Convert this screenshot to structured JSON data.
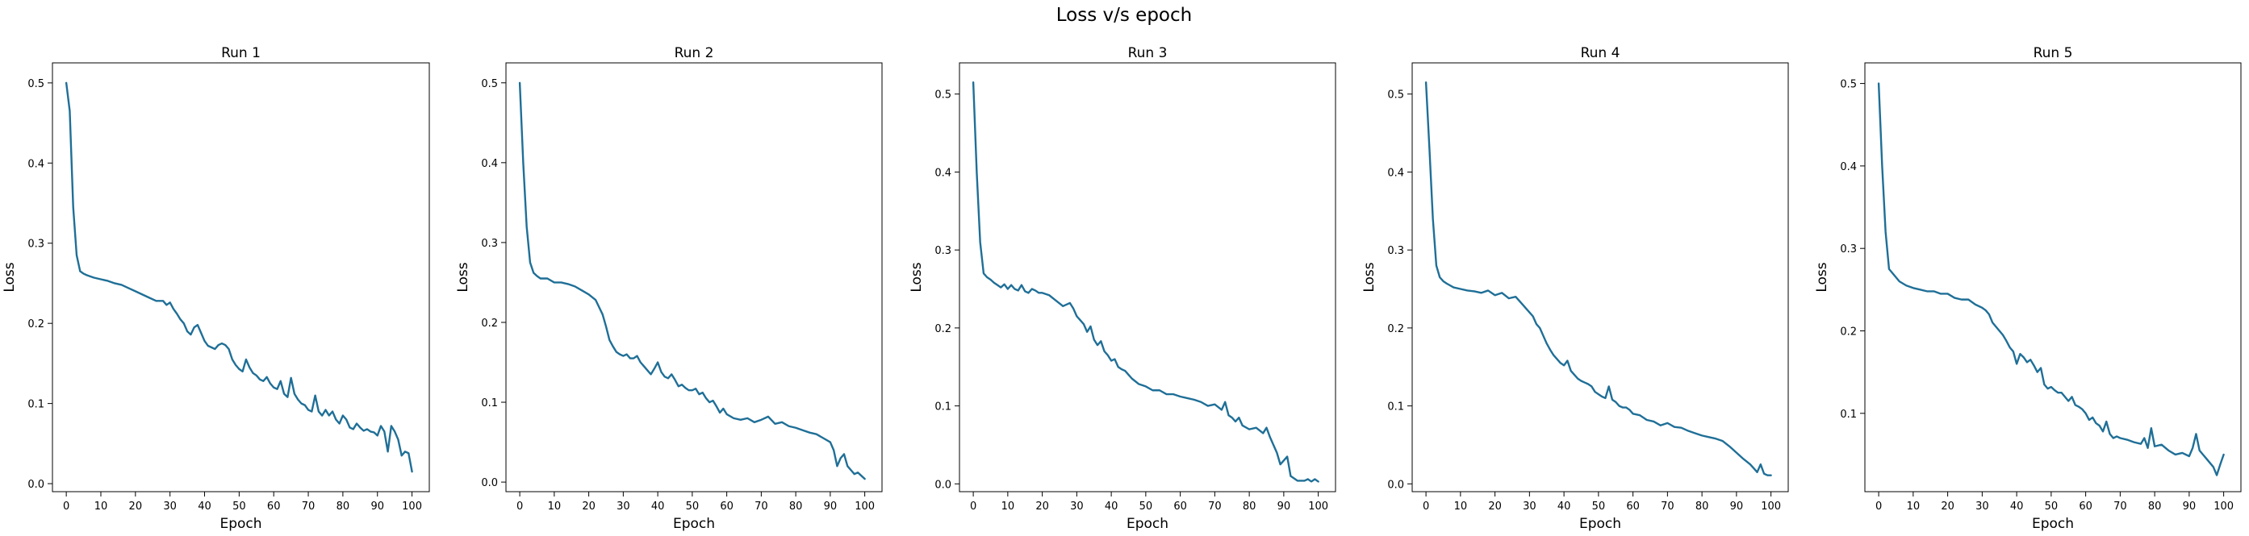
{
  "figure": {
    "title": "Loss v/s epoch",
    "background": "#ffffff",
    "line_color": "#1f6f97"
  },
  "chart_data": [
    {
      "type": "line",
      "title": "Run 1",
      "xlabel": "Epoch",
      "ylabel": "Loss",
      "xlim": [
        -4,
        105
      ],
      "ylim": [
        -0.01,
        0.525
      ],
      "xticks": [
        0,
        10,
        20,
        30,
        40,
        50,
        60,
        70,
        80,
        90,
        100
      ],
      "yticks": [
        0.0,
        0.1,
        0.2,
        0.3,
        0.4,
        0.5
      ],
      "ytick_labels": [
        "0.0",
        "0.1",
        "0.2",
        "0.3",
        "0.4",
        "0.5"
      ],
      "grid": false,
      "series": [
        {
          "x": [
            0,
            1,
            2,
            3,
            4,
            5,
            6,
            8,
            10,
            12,
            14,
            16,
            18,
            20,
            22,
            24,
            26,
            28,
            29,
            30,
            31,
            32,
            33,
            34,
            35,
            36,
            37,
            38,
            39,
            40,
            41,
            42,
            43,
            44,
            45,
            46,
            47,
            48,
            49,
            50,
            51,
            52,
            53,
            54,
            55,
            56,
            57,
            58,
            59,
            60,
            61,
            62,
            63,
            64,
            65,
            66,
            67,
            68,
            69,
            70,
            71,
            72,
            73,
            74,
            75,
            76,
            77,
            78,
            79,
            80,
            81,
            82,
            83,
            84,
            85,
            86,
            87,
            88,
            89,
            90,
            91,
            92,
            93,
            94,
            95,
            96,
            97,
            98,
            99,
            100
          ],
          "y": [
            0.5,
            0.465,
            0.345,
            0.285,
            0.265,
            0.262,
            0.26,
            0.257,
            0.255,
            0.253,
            0.25,
            0.248,
            0.244,
            0.24,
            0.236,
            0.232,
            0.228,
            0.228,
            0.223,
            0.226,
            0.218,
            0.212,
            0.205,
            0.2,
            0.19,
            0.186,
            0.195,
            0.198,
            0.188,
            0.178,
            0.172,
            0.17,
            0.168,
            0.173,
            0.175,
            0.173,
            0.168,
            0.155,
            0.148,
            0.143,
            0.14,
            0.155,
            0.145,
            0.138,
            0.135,
            0.13,
            0.128,
            0.133,
            0.125,
            0.12,
            0.118,
            0.128,
            0.112,
            0.108,
            0.132,
            0.112,
            0.105,
            0.1,
            0.098,
            0.092,
            0.09,
            0.11,
            0.09,
            0.085,
            0.092,
            0.085,
            0.09,
            0.08,
            0.075,
            0.085,
            0.08,
            0.07,
            0.068,
            0.075,
            0.07,
            0.066,
            0.068,
            0.065,
            0.064,
            0.06,
            0.072,
            0.065,
            0.04,
            0.072,
            0.065,
            0.055,
            0.035,
            0.04,
            0.038,
            0.015
          ]
        }
      ]
    },
    {
      "type": "line",
      "title": "Run 2",
      "xlabel": "Epoch",
      "ylabel": "Loss",
      "xlim": [
        -4,
        105
      ],
      "ylim": [
        -0.012,
        0.525
      ],
      "xticks": [
        0,
        10,
        20,
        30,
        40,
        50,
        60,
        70,
        80,
        90,
        100
      ],
      "yticks": [
        0.0,
        0.1,
        0.2,
        0.3,
        0.4,
        0.5
      ],
      "ytick_labels": [
        "0.0",
        "0.1",
        "0.2",
        "0.3",
        "0.4",
        "0.5"
      ],
      "grid": false,
      "series": [
        {
          "x": [
            0,
            1,
            2,
            3,
            4,
            5,
            6,
            8,
            10,
            12,
            14,
            16,
            18,
            20,
            22,
            24,
            25,
            26,
            27,
            28,
            29,
            30,
            31,
            32,
            33,
            34,
            35,
            36,
            37,
            38,
            39,
            40,
            41,
            42,
            43,
            44,
            45,
            46,
            47,
            48,
            49,
            50,
            51,
            52,
            53,
            54,
            55,
            56,
            57,
            58,
            59,
            60,
            62,
            64,
            66,
            68,
            70,
            72,
            74,
            76,
            78,
            80,
            82,
            84,
            86,
            88,
            90,
            91,
            92,
            93,
            94,
            95,
            96,
            97,
            98,
            99,
            100
          ],
          "y": [
            0.5,
            0.4,
            0.32,
            0.275,
            0.262,
            0.258,
            0.255,
            0.255,
            0.25,
            0.25,
            0.248,
            0.245,
            0.24,
            0.235,
            0.228,
            0.21,
            0.195,
            0.178,
            0.17,
            0.163,
            0.16,
            0.158,
            0.16,
            0.155,
            0.155,
            0.158,
            0.15,
            0.145,
            0.14,
            0.135,
            0.142,
            0.15,
            0.138,
            0.132,
            0.13,
            0.135,
            0.128,
            0.12,
            0.122,
            0.118,
            0.115,
            0.115,
            0.117,
            0.11,
            0.112,
            0.105,
            0.1,
            0.102,
            0.095,
            0.087,
            0.092,
            0.085,
            0.08,
            0.078,
            0.08,
            0.075,
            0.078,
            0.082,
            0.073,
            0.075,
            0.07,
            0.068,
            0.065,
            0.062,
            0.06,
            0.055,
            0.05,
            0.04,
            0.02,
            0.03,
            0.035,
            0.02,
            0.015,
            0.01,
            0.012,
            0.008,
            0.004
          ]
        }
      ]
    },
    {
      "type": "line",
      "title": "Run 3",
      "xlabel": "Epoch",
      "ylabel": "Loss",
      "xlim": [
        -4,
        105
      ],
      "ylim": [
        -0.01,
        0.54
      ],
      "xticks": [
        0,
        10,
        20,
        30,
        40,
        50,
        60,
        70,
        80,
        90,
        100
      ],
      "yticks": [
        0.0,
        0.1,
        0.2,
        0.3,
        0.4,
        0.5
      ],
      "ytick_labels": [
        "0.0",
        "0.1",
        "0.2",
        "0.3",
        "0.4",
        "0.5"
      ],
      "grid": false,
      "series": [
        {
          "x": [
            0,
            1,
            2,
            3,
            4,
            5,
            6,
            7,
            8,
            9,
            10,
            11,
            12,
            13,
            14,
            15,
            16,
            17,
            18,
            19,
            20,
            22,
            24,
            26,
            28,
            29,
            30,
            31,
            32,
            33,
            34,
            35,
            36,
            37,
            38,
            39,
            40,
            41,
            42,
            43,
            44,
            45,
            46,
            48,
            50,
            52,
            54,
            56,
            58,
            60,
            62,
            64,
            66,
            68,
            70,
            72,
            73,
            74,
            75,
            76,
            77,
            78,
            80,
            82,
            84,
            85,
            86,
            87,
            88,
            89,
            90,
            91,
            92,
            94,
            96,
            97,
            98,
            99,
            100
          ],
          "y": [
            0.515,
            0.4,
            0.31,
            0.27,
            0.265,
            0.262,
            0.258,
            0.255,
            0.252,
            0.256,
            0.25,
            0.255,
            0.25,
            0.248,
            0.255,
            0.247,
            0.245,
            0.25,
            0.248,
            0.245,
            0.245,
            0.242,
            0.235,
            0.228,
            0.232,
            0.225,
            0.215,
            0.21,
            0.205,
            0.195,
            0.202,
            0.185,
            0.178,
            0.183,
            0.17,
            0.165,
            0.158,
            0.16,
            0.15,
            0.147,
            0.145,
            0.14,
            0.135,
            0.128,
            0.125,
            0.12,
            0.12,
            0.115,
            0.115,
            0.112,
            0.11,
            0.108,
            0.105,
            0.1,
            0.102,
            0.095,
            0.105,
            0.088,
            0.085,
            0.08,
            0.085,
            0.075,
            0.07,
            0.072,
            0.065,
            0.072,
            0.06,
            0.05,
            0.04,
            0.025,
            0.03,
            0.035,
            0.01,
            0.004,
            0.004,
            0.006,
            0.003,
            0.006,
            0.003
          ]
        }
      ]
    },
    {
      "type": "line",
      "title": "Run 4",
      "xlabel": "Epoch",
      "ylabel": "Loss",
      "xlim": [
        -4,
        105
      ],
      "ylim": [
        -0.01,
        0.54
      ],
      "xticks": [
        0,
        10,
        20,
        30,
        40,
        50,
        60,
        70,
        80,
        90,
        100
      ],
      "yticks": [
        0.0,
        0.1,
        0.2,
        0.3,
        0.4,
        0.5
      ],
      "ytick_labels": [
        "0.0",
        "0.1",
        "0.2",
        "0.3",
        "0.4",
        "0.5"
      ],
      "grid": false,
      "series": [
        {
          "x": [
            0,
            1,
            2,
            3,
            4,
            5,
            6,
            8,
            10,
            12,
            14,
            16,
            18,
            20,
            22,
            24,
            26,
            28,
            30,
            31,
            32,
            33,
            34,
            35,
            36,
            37,
            38,
            39,
            40,
            41,
            42,
            43,
            44,
            45,
            46,
            47,
            48,
            49,
            50,
            51,
            52,
            53,
            54,
            55,
            56,
            57,
            58,
            59,
            60,
            62,
            64,
            66,
            68,
            70,
            72,
            74,
            76,
            78,
            80,
            82,
            84,
            86,
            88,
            90,
            92,
            94,
            95,
            96,
            97,
            98,
            99,
            100
          ],
          "y": [
            0.515,
            0.43,
            0.34,
            0.28,
            0.265,
            0.26,
            0.257,
            0.252,
            0.25,
            0.248,
            0.247,
            0.245,
            0.248,
            0.242,
            0.245,
            0.238,
            0.24,
            0.23,
            0.22,
            0.215,
            0.205,
            0.2,
            0.19,
            0.18,
            0.172,
            0.165,
            0.16,
            0.155,
            0.152,
            0.158,
            0.145,
            0.14,
            0.135,
            0.132,
            0.13,
            0.128,
            0.125,
            0.118,
            0.115,
            0.112,
            0.11,
            0.125,
            0.108,
            0.105,
            0.1,
            0.098,
            0.098,
            0.095,
            0.09,
            0.088,
            0.082,
            0.08,
            0.075,
            0.078,
            0.073,
            0.072,
            0.068,
            0.065,
            0.062,
            0.06,
            0.058,
            0.055,
            0.048,
            0.04,
            0.032,
            0.025,
            0.02,
            0.015,
            0.025,
            0.013,
            0.011,
            0.011
          ]
        }
      ]
    },
    {
      "type": "line",
      "title": "Run 5",
      "xlabel": "Epoch",
      "ylabel": "Loss",
      "xlim": [
        -4,
        105
      ],
      "ylim": [
        0.005,
        0.525
      ],
      "xticks": [
        0,
        10,
        20,
        30,
        40,
        50,
        60,
        70,
        80,
        90,
        100
      ],
      "yticks": [
        0.1,
        0.2,
        0.3,
        0.4,
        0.5
      ],
      "ytick_labels": [
        "0.1",
        "0.2",
        "0.3",
        "0.4",
        "0.5"
      ],
      "grid": false,
      "series": [
        {
          "x": [
            0,
            1,
            2,
            3,
            4,
            5,
            6,
            8,
            10,
            12,
            14,
            16,
            18,
            20,
            22,
            24,
            26,
            28,
            30,
            31,
            32,
            33,
            34,
            35,
            36,
            37,
            38,
            39,
            40,
            41,
            42,
            43,
            44,
            45,
            46,
            47,
            48,
            49,
            50,
            51,
            52,
            53,
            54,
            55,
            56,
            57,
            58,
            59,
            60,
            61,
            62,
            63,
            64,
            65,
            66,
            67,
            68,
            69,
            70,
            72,
            74,
            76,
            77,
            78,
            79,
            80,
            82,
            84,
            86,
            88,
            90,
            91,
            92,
            93,
            94,
            95,
            96,
            97,
            98,
            99,
            100
          ],
          "y": [
            0.5,
            0.4,
            0.32,
            0.275,
            0.27,
            0.265,
            0.26,
            0.255,
            0.252,
            0.25,
            0.248,
            0.248,
            0.245,
            0.245,
            0.24,
            0.238,
            0.238,
            0.232,
            0.228,
            0.225,
            0.22,
            0.21,
            0.205,
            0.2,
            0.195,
            0.188,
            0.18,
            0.175,
            0.16,
            0.172,
            0.168,
            0.162,
            0.165,
            0.158,
            0.15,
            0.155,
            0.135,
            0.13,
            0.132,
            0.128,
            0.125,
            0.125,
            0.12,
            0.115,
            0.12,
            0.11,
            0.108,
            0.105,
            0.1,
            0.092,
            0.095,
            0.088,
            0.085,
            0.078,
            0.09,
            0.075,
            0.07,
            0.072,
            0.07,
            0.068,
            0.065,
            0.063,
            0.07,
            0.058,
            0.082,
            0.06,
            0.062,
            0.055,
            0.05,
            0.052,
            0.048,
            0.058,
            0.075,
            0.055,
            0.05,
            0.045,
            0.04,
            0.035,
            0.025,
            0.038,
            0.05
          ]
        }
      ]
    }
  ]
}
